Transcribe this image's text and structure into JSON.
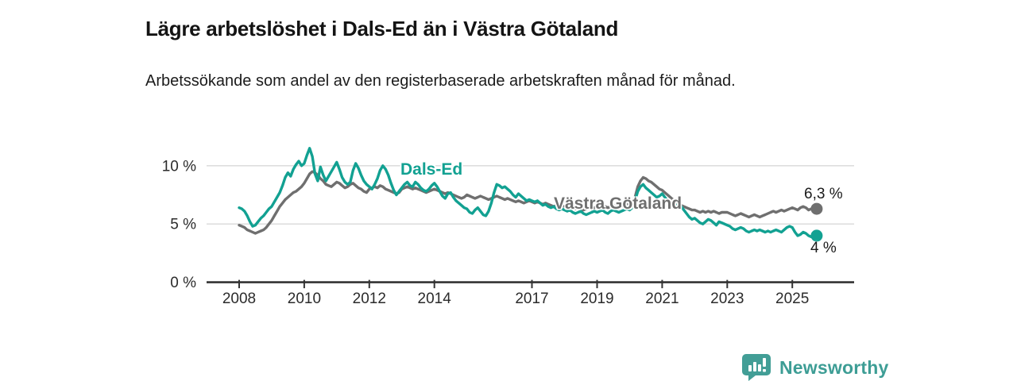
{
  "header": {
    "title": "Lägre arbetslöshet i Dals-Ed än i Västra Götaland",
    "subtitle": "Arbetssökande som andel av den registerbaserade arbetskraften månad för månad."
  },
  "chart_data": {
    "type": "line",
    "unit": "%",
    "x_start_year": 2008,
    "points_per_year": 12,
    "xlim": [
      2007.0,
      2026.9
    ],
    "ylim": [
      0,
      12.1
    ],
    "grid": "horizontal gridlines at 5 and 10, baseline axis at 0",
    "legend_position": "inline labels on lines",
    "x_ticks": [
      {
        "value": 2008,
        "label": "2008"
      },
      {
        "value": 2010,
        "label": "2010"
      },
      {
        "value": 2012,
        "label": "2012"
      },
      {
        "value": 2014,
        "label": "2014"
      },
      {
        "value": 2017,
        "label": "2017"
      },
      {
        "value": 2019,
        "label": "2019"
      },
      {
        "value": 2021,
        "label": "2021"
      },
      {
        "value": 2023,
        "label": "2023"
      },
      {
        "value": 2025,
        "label": "2025"
      }
    ],
    "y_ticks": [
      {
        "value": 0,
        "label": "0 %"
      },
      {
        "value": 5,
        "label": "5 %"
      },
      {
        "value": 10,
        "label": "10 %"
      }
    ],
    "series": [
      {
        "name": "Dals-Ed",
        "color": "#12a192",
        "end_label": "4 %",
        "end_value": 4.0,
        "values": [
          6.4,
          6.3,
          6.1,
          5.7,
          5.2,
          4.8,
          4.9,
          5.2,
          5.5,
          5.7,
          6.0,
          6.3,
          6.5,
          6.9,
          7.3,
          7.7,
          8.3,
          9.0,
          9.4,
          9.1,
          9.7,
          10.1,
          10.4,
          10.0,
          10.2,
          10.9,
          11.5,
          10.8,
          9.3,
          8.7,
          9.9,
          9.2,
          8.7,
          9.1,
          9.5,
          9.9,
          10.3,
          9.7,
          9.0,
          8.6,
          8.4,
          8.6,
          9.6,
          10.2,
          9.8,
          9.2,
          8.7,
          8.4,
          8.2,
          8.0,
          8.4,
          8.9,
          9.6,
          10.0,
          9.7,
          9.2,
          8.5,
          7.9,
          7.5,
          7.8,
          8.1,
          8.4,
          8.6,
          8.3,
          8.2,
          8.6,
          8.4,
          8.1,
          7.9,
          7.8,
          8.0,
          8.3,
          8.5,
          8.2,
          7.8,
          7.4,
          7.2,
          7.6,
          7.7,
          7.3,
          7.0,
          6.8,
          6.6,
          6.4,
          6.3,
          6.0,
          5.9,
          6.2,
          6.4,
          6.1,
          5.8,
          5.7,
          6.1,
          6.8,
          7.7,
          8.4,
          8.3,
          8.1,
          8.2,
          8.0,
          7.8,
          7.5,
          7.3,
          7.6,
          7.4,
          7.2,
          7.0,
          7.1,
          7.0,
          6.9,
          7.0,
          6.8,
          6.6,
          6.7,
          6.5,
          6.4,
          6.5,
          6.3,
          6.2,
          6.3,
          6.2,
          6.1,
          6.2,
          6.0,
          5.9,
          6.0,
          6.1,
          5.9,
          5.8,
          5.9,
          6.0,
          6.1,
          6.0,
          6.1,
          6.2,
          6.0,
          5.9,
          6.1,
          6.2,
          6.1,
          6.0,
          6.1,
          6.2,
          6.3,
          6.2,
          6.4,
          7.0,
          7.8,
          8.2,
          8.4,
          8.1,
          7.9,
          7.7,
          7.5,
          7.3,
          7.4,
          7.6,
          7.3,
          7.0,
          6.8,
          6.6,
          6.5,
          6.7,
          6.5,
          6.2,
          5.9,
          5.6,
          5.4,
          5.5,
          5.3,
          5.1,
          5.0,
          5.2,
          5.4,
          5.3,
          5.1,
          4.9,
          5.2,
          5.1,
          5.0,
          4.9,
          4.8,
          4.6,
          4.5,
          4.6,
          4.7,
          4.6,
          4.4,
          4.3,
          4.4,
          4.5,
          4.4,
          4.5,
          4.4,
          4.3,
          4.4,
          4.3,
          4.4,
          4.5,
          4.4,
          4.3,
          4.5,
          4.7,
          4.8,
          4.7,
          4.3,
          4.0,
          4.1,
          4.3,
          4.2,
          4.0,
          3.9,
          4.1,
          4.0
        ]
      },
      {
        "name": "Västra Götaland",
        "color": "#6f6f6f",
        "end_label": "6,3 %",
        "end_value": 6.3,
        "values": [
          4.9,
          4.8,
          4.7,
          4.5,
          4.4,
          4.3,
          4.2,
          4.3,
          4.4,
          4.5,
          4.7,
          5.0,
          5.3,
          5.7,
          6.1,
          6.5,
          6.8,
          7.1,
          7.3,
          7.5,
          7.7,
          7.8,
          8.0,
          8.2,
          8.5,
          8.9,
          9.3,
          9.5,
          9.4,
          9.2,
          8.9,
          8.7,
          8.4,
          8.3,
          8.2,
          8.4,
          8.6,
          8.5,
          8.3,
          8.1,
          8.2,
          8.4,
          8.5,
          8.3,
          8.1,
          8.0,
          7.8,
          7.7,
          8.0,
          8.1,
          8.2,
          8.1,
          8.3,
          8.2,
          8.0,
          7.9,
          7.8,
          7.7,
          7.6,
          7.7,
          8.0,
          8.1,
          8.2,
          8.1,
          8.0,
          8.1,
          8.0,
          7.9,
          7.8,
          7.7,
          7.8,
          7.9,
          8.0,
          7.9,
          7.8,
          7.7,
          7.6,
          7.7,
          7.6,
          7.5,
          7.4,
          7.3,
          7.2,
          7.3,
          7.5,
          7.4,
          7.3,
          7.2,
          7.3,
          7.4,
          7.3,
          7.2,
          7.1,
          7.2,
          7.3,
          7.4,
          7.3,
          7.2,
          7.1,
          7.2,
          7.1,
          7.0,
          6.9,
          7.0,
          6.9,
          6.8,
          6.9,
          7.0,
          6.9,
          6.8,
          6.9,
          6.8,
          6.7,
          6.8,
          6.7,
          6.6,
          6.5,
          6.6,
          6.5,
          6.6,
          6.5,
          6.4,
          6.5,
          6.4,
          6.3,
          6.4,
          6.3,
          6.2,
          6.3,
          6.4,
          6.3,
          6.4,
          6.4,
          6.5,
          6.4,
          6.5,
          6.4,
          6.5,
          6.6,
          6.5,
          6.6,
          6.5,
          6.6,
          6.7,
          6.8,
          6.9,
          7.3,
          8.2,
          8.7,
          9.0,
          8.9,
          8.7,
          8.6,
          8.4,
          8.2,
          8.0,
          7.9,
          7.7,
          7.5,
          7.3,
          7.1,
          6.9,
          6.8,
          6.6,
          6.5,
          6.4,
          6.3,
          6.2,
          6.2,
          6.1,
          6.0,
          6.1,
          6.0,
          6.1,
          6.0,
          6.1,
          6.0,
          5.9,
          6.0,
          6.0,
          6.0,
          5.9,
          5.8,
          5.7,
          5.8,
          5.9,
          5.8,
          5.7,
          5.6,
          5.7,
          5.8,
          5.7,
          5.6,
          5.7,
          5.8,
          5.9,
          6.0,
          6.1,
          6.0,
          6.1,
          6.2,
          6.1,
          6.2,
          6.3,
          6.4,
          6.3,
          6.2,
          6.4,
          6.5,
          6.4,
          6.2,
          6.3,
          6.4,
          6.3
        ]
      }
    ]
  },
  "footer": {
    "brand": "Newsworthy",
    "logo_icon": "bar-chart-speech-bubble"
  },
  "colors": {
    "accent_teal": "#12a192",
    "series_gray": "#6f6f6f",
    "axis": "#333333",
    "gridline": "#d8d8d8",
    "logo_teal": "#429e96",
    "text": "#141414"
  }
}
